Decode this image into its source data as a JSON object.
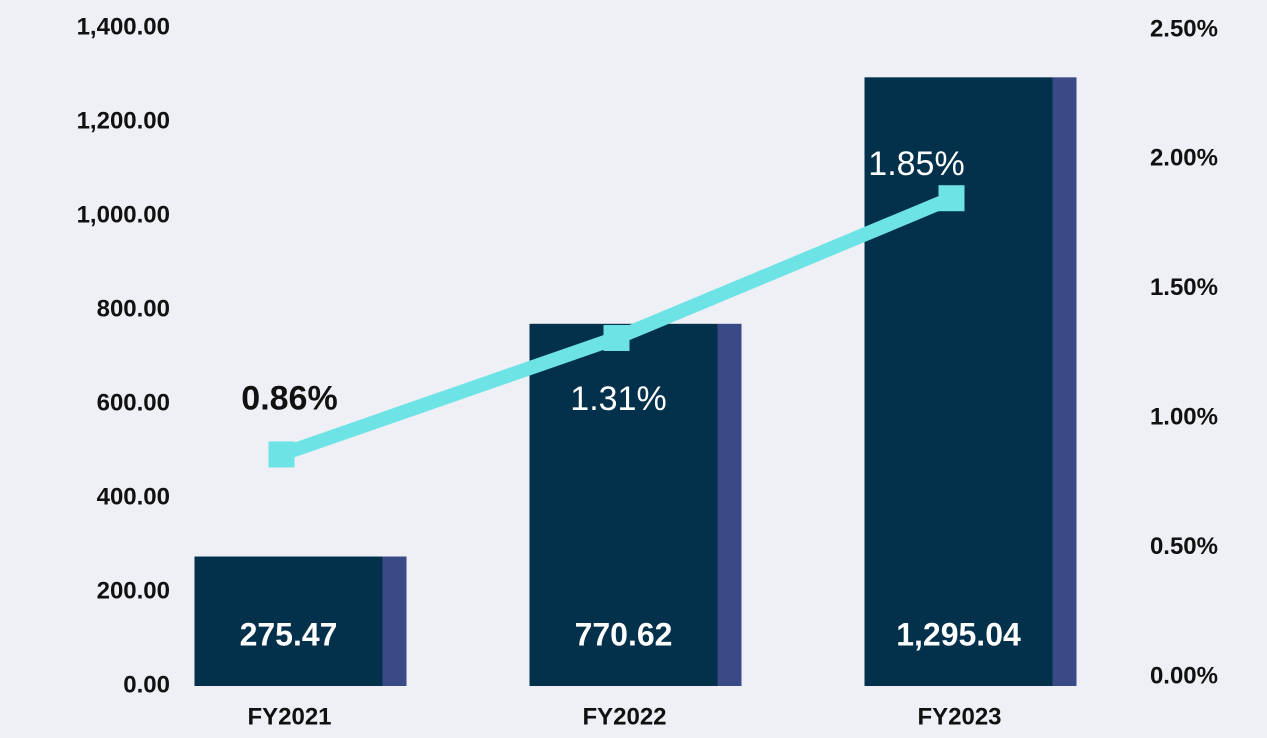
{
  "chart_data": {
    "type": "bar",
    "categories": [
      "FY2021",
      "FY2022",
      "FY2023"
    ],
    "series": [
      {
        "type": "bar",
        "color": "#03304a",
        "accent_color": "#3a4a86",
        "values": [
          275.47,
          770.62,
          1295.04
        ],
        "value_labels": [
          "275.47",
          "770.62",
          "1,295.04"
        ]
      },
      {
        "type": "line",
        "axis": "y2",
        "color": "#6ee3e6",
        "values": [
          0.86,
          1.31,
          1.85
        ],
        "value_labels": [
          "0.86%",
          "1.31%",
          "1.85%"
        ]
      }
    ],
    "ylim": [
      0,
      1400
    ],
    "yticks": [
      {
        "value": 0,
        "label": "0.00"
      },
      {
        "value": 200,
        "label": "200.00"
      },
      {
        "value": 400,
        "label": "400.00"
      },
      {
        "value": 600,
        "label": "600.00"
      },
      {
        "value": 800,
        "label": "800.00"
      },
      {
        "value": 1000,
        "label": "1,000.00"
      },
      {
        "value": 1200,
        "label": "1,200.00"
      },
      {
        "value": 1400,
        "label": "1,400.00"
      }
    ],
    "y2lim": [
      0,
      2.5
    ],
    "y2ticks": [
      {
        "value": 0,
        "label": "0.00%"
      },
      {
        "value": 0.5,
        "label": "0.50%"
      },
      {
        "value": 1,
        "label": "1.00%"
      },
      {
        "value": 1.5,
        "label": "1.50%"
      },
      {
        "value": 2,
        "label": "2.00%"
      },
      {
        "value": 2.5,
        "label": "2.50%"
      }
    ]
  }
}
